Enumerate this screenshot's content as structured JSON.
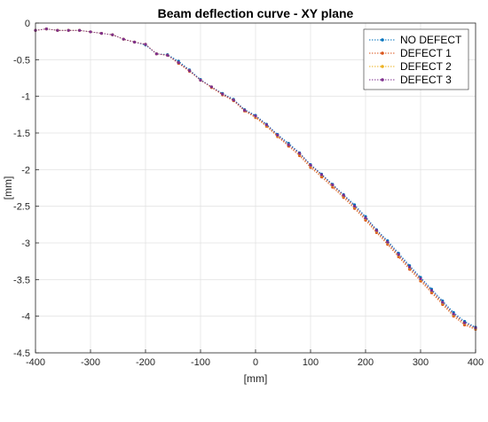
{
  "chart_data": {
    "type": "line",
    "title": "Beam deflection curve - XY plane",
    "xlabel": "[mm]",
    "ylabel": "[mm]",
    "xlim": [
      -400,
      400
    ],
    "ylim": [
      -4.5,
      0
    ],
    "xticks": [
      -400,
      -300,
      -200,
      -100,
      0,
      100,
      200,
      300,
      400
    ],
    "yticks": [
      0,
      -0.5,
      -1,
      -1.5,
      -2,
      -2.5,
      -3,
      -3.5,
      -4,
      -4.5
    ],
    "grid": true,
    "legend_position": "top-right",
    "x": [
      -400,
      -380,
      -360,
      -340,
      -320,
      -300,
      -280,
      -260,
      -240,
      -220,
      -200,
      -180,
      -160,
      -140,
      -120,
      -100,
      -80,
      -60,
      -40,
      -20,
      0,
      20,
      40,
      60,
      80,
      100,
      120,
      140,
      160,
      180,
      200,
      220,
      240,
      260,
      280,
      300,
      320,
      340,
      360,
      380,
      400
    ],
    "series": [
      {
        "name": "NO DEFECT",
        "color": "#0072BD",
        "values": [
          -0.1,
          -0.08,
          -0.1,
          -0.1,
          -0.1,
          -0.12,
          -0.14,
          -0.16,
          -0.22,
          -0.26,
          -0.3,
          -0.42,
          -0.43,
          -0.52,
          -0.64,
          -0.77,
          -0.87,
          -0.96,
          -1.04,
          -1.18,
          -1.26,
          -1.38,
          -1.52,
          -1.64,
          -1.77,
          -1.93,
          -2.06,
          -2.2,
          -2.34,
          -2.48,
          -2.64,
          -2.82,
          -2.97,
          -3.14,
          -3.31,
          -3.47,
          -3.63,
          -3.79,
          -3.95,
          -4.07,
          -4.15
        ]
      },
      {
        "name": "DEFECT 1",
        "color": "#D95319",
        "values": [
          -0.1,
          -0.08,
          -0.1,
          -0.1,
          -0.1,
          -0.12,
          -0.14,
          -0.16,
          -0.22,
          -0.26,
          -0.29,
          -0.42,
          -0.44,
          -0.55,
          -0.66,
          -0.78,
          -0.88,
          -0.98,
          -1.06,
          -1.2,
          -1.29,
          -1.41,
          -1.55,
          -1.68,
          -1.81,
          -1.97,
          -2.1,
          -2.24,
          -2.38,
          -2.53,
          -2.69,
          -2.86,
          -3.02,
          -3.19,
          -3.36,
          -3.52,
          -3.68,
          -3.84,
          -4.0,
          -4.12,
          -4.18
        ]
      },
      {
        "name": "DEFECT 2",
        "color": "#EDB120",
        "values": [
          -0.1,
          -0.08,
          -0.1,
          -0.1,
          -0.1,
          -0.12,
          -0.14,
          -0.16,
          -0.22,
          -0.26,
          -0.29,
          -0.42,
          -0.44,
          -0.54,
          -0.65,
          -0.78,
          -0.87,
          -0.97,
          -1.05,
          -1.19,
          -1.28,
          -1.4,
          -1.54,
          -1.66,
          -1.79,
          -1.95,
          -2.08,
          -2.22,
          -2.36,
          -2.51,
          -2.67,
          -2.84,
          -3.0,
          -3.17,
          -3.34,
          -3.5,
          -3.66,
          -3.82,
          -3.98,
          -4.1,
          -4.17
        ]
      },
      {
        "name": "DEFECT 3",
        "color": "#7E2F8E",
        "values": [
          -0.1,
          -0.08,
          -0.1,
          -0.1,
          -0.1,
          -0.12,
          -0.14,
          -0.16,
          -0.22,
          -0.26,
          -0.29,
          -0.42,
          -0.44,
          -0.54,
          -0.65,
          -0.78,
          -0.87,
          -0.97,
          -1.05,
          -1.19,
          -1.27,
          -1.39,
          -1.53,
          -1.66,
          -1.78,
          -1.94,
          -2.07,
          -2.21,
          -2.35,
          -2.5,
          -2.66,
          -2.83,
          -2.99,
          -3.16,
          -3.33,
          -3.49,
          -3.65,
          -3.81,
          -3.97,
          -4.09,
          -4.16
        ]
      }
    ]
  }
}
